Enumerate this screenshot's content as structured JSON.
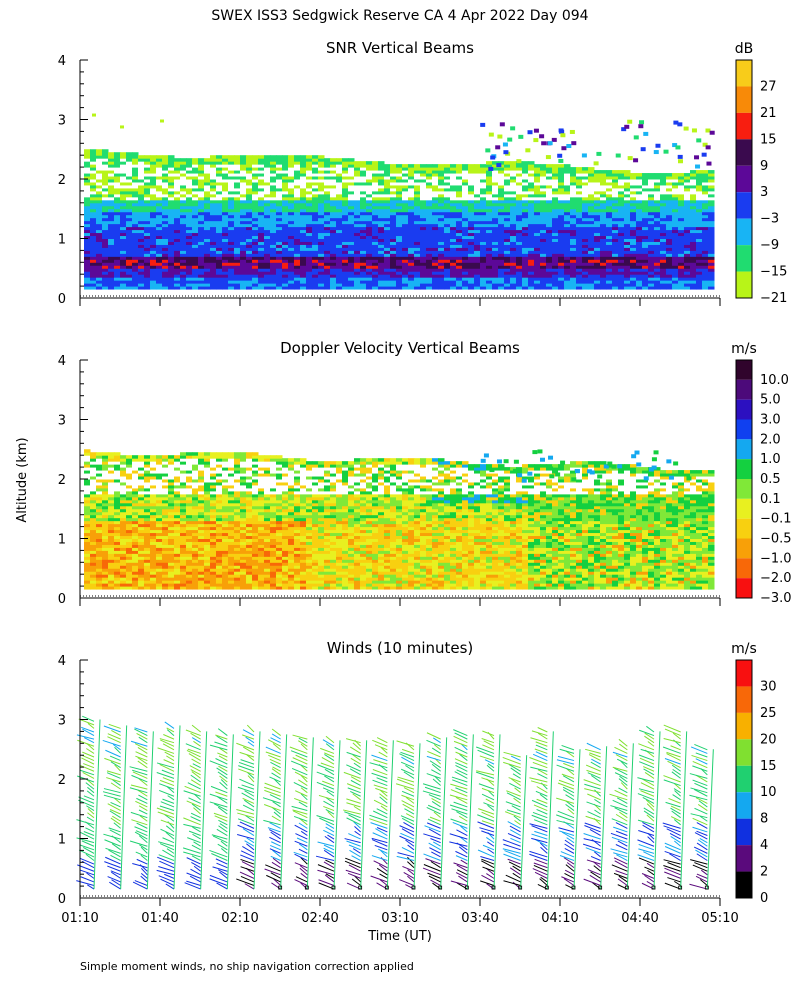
{
  "title": "SWEX ISS3 Sedgwick Reserve CA    4 Apr 2022 Day 094",
  "footnote": "Simple moment winds, no ship navigation correction applied",
  "y_axis_label": "Altitude (km)",
  "x_axis_label": "Time (UT)",
  "x_ticks": [
    "01:10",
    "01:40",
    "02:10",
    "02:40",
    "03:10",
    "03:40",
    "04:10",
    "04:40",
    "05:10"
  ],
  "y_ticks": [
    "0",
    "1",
    "2",
    "3",
    "4"
  ],
  "chart_data": [
    {
      "type": "heatmap",
      "title": "SNR Vertical Beams",
      "xlabel": "",
      "ylabel": "",
      "xlim": [
        "01:10",
        "05:10"
      ],
      "ylim": [
        0,
        4
      ],
      "colorbar_unit": "dB",
      "colorbar_labels": [
        "27",
        "21",
        "15",
        "9",
        "3",
        "−3",
        "−9",
        "−15",
        "−21"
      ],
      "colors": [
        "#f8cc1a",
        "#f88a08",
        "#f81e10",
        "#3a0a4e",
        "#5c0898",
        "#1a3cf0",
        "#18b4f4",
        "#20dc70",
        "#b8f418",
        "#ffffff"
      ],
      "layers": [
        {
          "altitude_km": [
            0.15,
            0.5
          ],
          "snr_db": 9,
          "note_color": "#3a0a4e"
        },
        {
          "altitude_km": [
            0.5,
            0.6
          ],
          "snr_db": 15,
          "note_color": "#f81e10"
        },
        {
          "altitude_km": [
            0.6,
            1.3
          ],
          "snr_db": -3,
          "note_color": "#1a3cf0"
        },
        {
          "altitude_km": [
            1.3,
            1.6
          ],
          "snr_db": -9,
          "note_color": "#18b4f4"
        },
        {
          "altitude_km": [
            1.6,
            2.4
          ],
          "snr_db": -18,
          "note_color": "#b8f418"
        }
      ],
      "grid": false
    },
    {
      "type": "heatmap",
      "title": "Doppler Velocity Vertical Beams",
      "xlabel": "",
      "ylabel": "Altitude (km)",
      "xlim": [
        "01:10",
        "05:10"
      ],
      "ylim": [
        0,
        4
      ],
      "colorbar_unit": "m/s",
      "colorbar_labels": [
        "10.0",
        "5.0",
        "3.0",
        "2.0",
        "1.0",
        "0.5",
        "0.1",
        "−0.1",
        "−0.5",
        "−1.0",
        "−2.0",
        "−3.0"
      ],
      "colors": [
        "#30042c",
        "#4c0a7a",
        "#2c10c0",
        "#1040f0",
        "#14a8f0",
        "#14d040",
        "#80e838",
        "#e8f020",
        "#f8d010",
        "#f8a008",
        "#f86808",
        "#f81010"
      ],
      "grid": false
    },
    {
      "type": "scatter",
      "title": "Winds (10 minutes)",
      "xlabel": "Time (UT)",
      "ylabel": "",
      "xlim": [
        "01:10",
        "05:10"
      ],
      "ylim": [
        0,
        4
      ],
      "colorbar_unit": "m/s",
      "colorbar_labels": [
        "30",
        "25",
        "20",
        "15",
        "10",
        "8",
        "4",
        "2",
        "0"
      ],
      "colors": [
        "#f81010",
        "#f86808",
        "#f8b000",
        "#80e030",
        "#20d070",
        "#14a8f0",
        "#1030e0",
        "#5a0a7c",
        "#000000"
      ],
      "profile_times": [
        "01:10",
        "01:20",
        "01:30",
        "01:40",
        "01:50",
        "02:00",
        "02:10",
        "02:20",
        "02:30",
        "02:40",
        "02:50",
        "03:00",
        "03:10",
        "03:20",
        "03:30",
        "03:40",
        "03:50",
        "04:00",
        "04:10",
        "04:20",
        "04:30",
        "04:40",
        "04:50",
        "05:00"
      ],
      "profile_top_km": [
        3.0,
        2.9,
        2.8,
        2.9,
        2.8,
        2.75,
        2.8,
        2.75,
        2.7,
        2.65,
        2.65,
        2.65,
        2.6,
        2.7,
        2.75,
        2.75,
        2.4,
        2.8,
        2.5,
        2.55,
        2.6,
        2.8,
        2.8,
        2.5
      ],
      "grid": false
    }
  ]
}
